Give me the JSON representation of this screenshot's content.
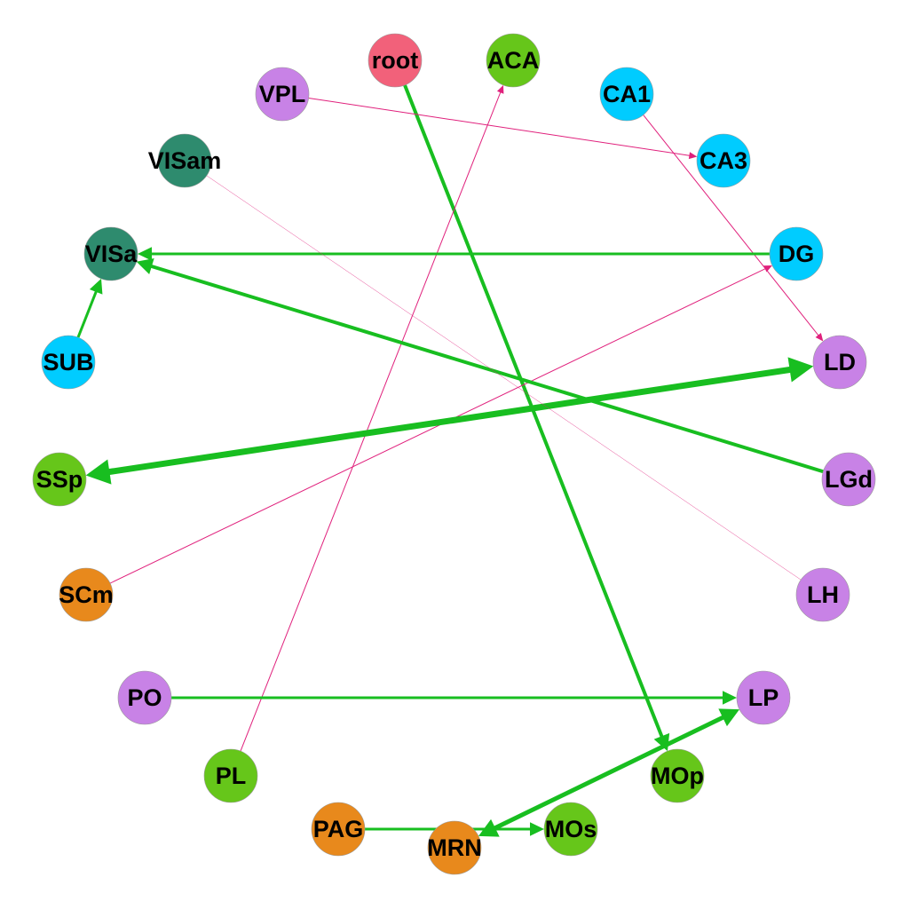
{
  "colors": {
    "hippocampal": "#00CCFF",
    "thalamus": "#C882E6",
    "isocortex": "#66C61A",
    "visual": "#2E8B6E",
    "midbrain": "#E8891C",
    "root": "#F2617A",
    "edge_strong": "#18BE20",
    "edge_weak": "#E0207C"
  },
  "nodes": [
    {
      "id": "root",
      "label": "root",
      "color": "#F2617A"
    },
    {
      "id": "ACA",
      "label": "ACA",
      "color": "#66C61A"
    },
    {
      "id": "CA1",
      "label": "CA1",
      "color": "#00CCFF"
    },
    {
      "id": "CA3",
      "label": "CA3",
      "color": "#00CCFF"
    },
    {
      "id": "DG",
      "label": "DG",
      "color": "#00CCFF"
    },
    {
      "id": "LD",
      "label": "LD",
      "color": "#C882E6"
    },
    {
      "id": "LGd",
      "label": "LGd",
      "color": "#C882E6"
    },
    {
      "id": "LH",
      "label": "LH",
      "color": "#C882E6"
    },
    {
      "id": "LP",
      "label": "LP",
      "color": "#C882E6"
    },
    {
      "id": "MOp",
      "label": "MOp",
      "color": "#66C61A"
    },
    {
      "id": "MOs",
      "label": "MOs",
      "color": "#66C61A"
    },
    {
      "id": "MRN",
      "label": "MRN",
      "color": "#E8891C"
    },
    {
      "id": "PAG",
      "label": "PAG",
      "color": "#E8891C"
    },
    {
      "id": "PL",
      "label": "PL",
      "color": "#66C61A"
    },
    {
      "id": "PO",
      "label": "PO",
      "color": "#C882E6"
    },
    {
      "id": "SCm",
      "label": "SCm",
      "color": "#E8891C"
    },
    {
      "id": "SSp",
      "label": "SSp",
      "color": "#66C61A"
    },
    {
      "id": "SUB",
      "label": "SUB",
      "color": "#00CCFF"
    },
    {
      "id": "VISa",
      "label": "VISa",
      "color": "#2E8B6E"
    },
    {
      "id": "VISam",
      "label": "VISam",
      "color": "#2E8B6E"
    },
    {
      "id": "VPL",
      "label": "VPL",
      "color": "#C882E6"
    }
  ],
  "edges": [
    {
      "source": "root",
      "target": "MOp",
      "type": "strong",
      "weight": 4
    },
    {
      "source": "PL",
      "target": "ACA",
      "type": "weak",
      "weight": 1
    },
    {
      "source": "VPL",
      "target": "CA3",
      "type": "weak",
      "weight": 1
    },
    {
      "source": "CA1",
      "target": "LD",
      "type": "weak",
      "weight": 1
    },
    {
      "source": "SCm",
      "target": "DG",
      "type": "weak",
      "weight": 1
    },
    {
      "source": "DG",
      "target": "VISa",
      "type": "strong",
      "weight": 3
    },
    {
      "source": "LGd",
      "target": "VISa",
      "type": "strong",
      "weight": 4
    },
    {
      "source": "SUB",
      "target": "VISa",
      "type": "strong",
      "weight": 3
    },
    {
      "source": "SSp",
      "target": "LD",
      "type": "strong",
      "weight": 7,
      "bidirectional": true
    },
    {
      "source": "VISam",
      "target": "LH",
      "type": "weak",
      "weight": 0.4,
      "arrow": false
    },
    {
      "source": "PO",
      "target": "LP",
      "type": "strong",
      "weight": 3
    },
    {
      "source": "LP",
      "target": "MRN",
      "type": "strong",
      "weight": 5,
      "bidirectional": true
    },
    {
      "source": "PAG",
      "target": "MOs",
      "type": "strong",
      "weight": 3
    }
  ]
}
